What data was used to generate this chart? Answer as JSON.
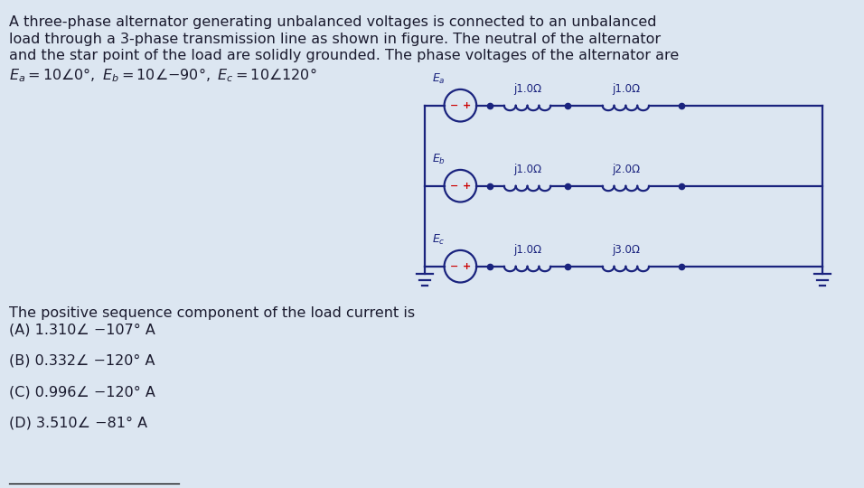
{
  "bg_color": "#dce6f1",
  "text_color": "#1a1a2e",
  "title_lines": [
    "A three-phase alternator generating unbalanced voltages is connected to an unbalanced",
    "load through a 3-phase transmission line as shown in figure. The neutral of the alternator",
    "and the star point of the load are solidly grounded. The phase voltages of the alternator are"
  ],
  "eq_line": "E_a = 10∠0°, E_b = 10∠−90°, E_c = 10∠120°",
  "question": "The positive sequence component of the load current is",
  "options": [
    "(A) 1.310∠ −107° A",
    "(B) 0.332∠ −120° A",
    "(C) 0.996∠ −120° A",
    "(D) 3.510∠ −81° A"
  ],
  "circuit_color": "#1a237e",
  "red_color": "#cc0000",
  "line_impedances": [
    "j1.0Ω",
    "j1.0Ω",
    "j1.0Ω"
  ],
  "load_impedances": [
    "j1.0Ω",
    "j2.0Ω",
    "j3.0Ω"
  ],
  "source_subs": [
    "a",
    "b",
    "c"
  ]
}
